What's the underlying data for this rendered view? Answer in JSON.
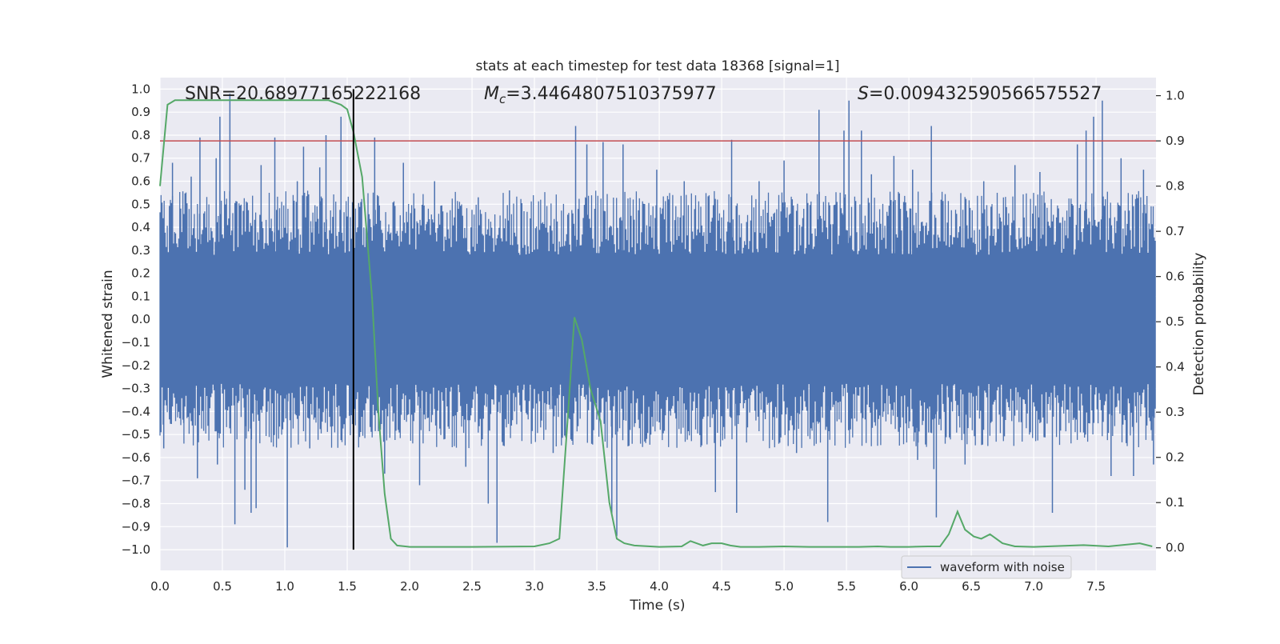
{
  "chart_data": {
    "type": "line",
    "title": "stats at each timestep for test data 18368 [signal=1]",
    "xlabel": "Time (s)",
    "ylabel_left": "Whitened strain",
    "ylabel_right": "Detection probability",
    "xlim": [
      0,
      7.98
    ],
    "ylim_left": [
      -1.09,
      1.05
    ],
    "ylim_right": [
      -0.05,
      1.04
    ],
    "x_ticks": [
      "0.0",
      "0.5",
      "1.0",
      "1.5",
      "2.0",
      "2.5",
      "3.0",
      "3.5",
      "4.0",
      "4.5",
      "5.0",
      "5.5",
      "6.0",
      "6.5",
      "7.0",
      "7.5"
    ],
    "y_ticks_left": [
      "1.0",
      "0.9",
      "0.8",
      "0.7",
      "0.6",
      "0.5",
      "0.4",
      "0.3",
      "0.2",
      "0.1",
      "0.0",
      "-0.1",
      "-0.2",
      "-0.3",
      "-0.4",
      "-0.5",
      "-0.6",
      "-0.7",
      "-0.8",
      "-0.9",
      "-1.0"
    ],
    "y_ticks_left_display": [
      "1.0",
      "0.9",
      "0.8",
      "0.7",
      "0.6",
      "0.5",
      "0.4",
      "0.3",
      "0.2",
      "0.1",
      "0.0",
      "−0.1",
      "−0.2",
      "−0.3",
      "−0.4",
      "−0.5",
      "−0.6",
      "−0.7",
      "−0.8",
      "−0.9",
      "−1.0"
    ],
    "y_ticks_right": [
      "0.0",
      "0.1",
      "0.2",
      "0.3",
      "0.4",
      "0.5",
      "0.6",
      "0.7",
      "0.8",
      "0.9",
      "1.0"
    ],
    "annotations": {
      "snr": "SNR=20.68977165222168",
      "mc_symbol": "M",
      "mc_sub": "c",
      "mc_value": "=3.4464807510375977",
      "s_symbol": "S",
      "s_value": "=0.009432590566575527"
    },
    "threshold_line": {
      "y_right": 0.9,
      "color": "#c44e52"
    },
    "merger_marker": {
      "x": 1.55,
      "y_left": [
        -1.0,
        1.0
      ],
      "color": "#000000"
    },
    "series": [
      {
        "name": "waveform with noise",
        "axis": "left",
        "color": "#4c72b0",
        "spikes": [
          {
            "x": 0.03,
            "v": -0.56
          },
          {
            "x": 0.1,
            "v": 0.68
          },
          {
            "x": 0.19,
            "v": -0.45
          },
          {
            "x": 0.25,
            "v": 0.62
          },
          {
            "x": 0.3,
            "v": -0.69
          },
          {
            "x": 0.32,
            "v": 0.79
          },
          {
            "x": 0.45,
            "v": 0.7
          },
          {
            "x": 0.46,
            "v": -0.63
          },
          {
            "x": 0.48,
            "v": 0.88
          },
          {
            "x": 0.56,
            "v": 0.98
          },
          {
            "x": 0.6,
            "v": -0.89
          },
          {
            "x": 0.68,
            "v": -0.74
          },
          {
            "x": 0.73,
            "v": -0.84
          },
          {
            "x": 0.77,
            "v": -0.82
          },
          {
            "x": 0.81,
            "v": 0.67
          },
          {
            "x": 0.92,
            "v": 0.79
          },
          {
            "x": 1.02,
            "v": -0.99
          },
          {
            "x": 1.1,
            "v": 0.6
          },
          {
            "x": 1.15,
            "v": 0.75
          },
          {
            "x": 1.2,
            "v": -0.56
          },
          {
            "x": 1.28,
            "v": 0.66
          },
          {
            "x": 1.33,
            "v": 0.8
          },
          {
            "x": 1.45,
            "v": 0.88
          },
          {
            "x": 1.55,
            "v": -0.56
          },
          {
            "x": 1.72,
            "v": 0.79
          },
          {
            "x": 1.8,
            "v": -0.67
          },
          {
            "x": 1.95,
            "v": 0.68
          },
          {
            "x": 2.08,
            "v": -0.72
          },
          {
            "x": 2.2,
            "v": 0.6
          },
          {
            "x": 2.45,
            "v": -0.64
          },
          {
            "x": 2.55,
            "v": 0.53
          },
          {
            "x": 2.63,
            "v": -0.8
          },
          {
            "x": 2.7,
            "v": -0.97
          },
          {
            "x": 2.8,
            "v": 0.56
          },
          {
            "x": 3.15,
            "v": -0.58
          },
          {
            "x": 3.33,
            "v": 0.84
          },
          {
            "x": 3.42,
            "v": 0.76
          },
          {
            "x": 3.55,
            "v": 0.77
          },
          {
            "x": 3.62,
            "v": -0.85
          },
          {
            "x": 3.66,
            "v": -0.94
          },
          {
            "x": 3.71,
            "v": 0.76
          },
          {
            "x": 3.98,
            "v": 0.65
          },
          {
            "x": 4.2,
            "v": 0.6
          },
          {
            "x": 4.45,
            "v": -0.75
          },
          {
            "x": 4.58,
            "v": 0.78
          },
          {
            "x": 4.62,
            "v": -0.84
          },
          {
            "x": 4.8,
            "v": 0.6
          },
          {
            "x": 5.0,
            "v": 0.69
          },
          {
            "x": 5.1,
            "v": -0.58
          },
          {
            "x": 5.28,
            "v": 0.91
          },
          {
            "x": 5.35,
            "v": -0.88
          },
          {
            "x": 5.48,
            "v": 0.82
          },
          {
            "x": 5.52,
            "v": 0.95
          },
          {
            "x": 5.62,
            "v": 0.82
          },
          {
            "x": 5.7,
            "v": 0.63
          },
          {
            "x": 5.88,
            "v": 0.71
          },
          {
            "x": 6.03,
            "v": 0.65
          },
          {
            "x": 6.07,
            "v": -0.61
          },
          {
            "x": 6.18,
            "v": 0.84
          },
          {
            "x": 6.2,
            "v": -0.65
          },
          {
            "x": 6.22,
            "v": -0.86
          },
          {
            "x": 6.45,
            "v": -0.63
          },
          {
            "x": 6.6,
            "v": 0.6
          },
          {
            "x": 6.85,
            "v": 0.67
          },
          {
            "x": 7.05,
            "v": 0.64
          },
          {
            "x": 7.15,
            "v": -0.84
          },
          {
            "x": 7.35,
            "v": 0.76
          },
          {
            "x": 7.42,
            "v": 0.82
          },
          {
            "x": 7.48,
            "v": 0.88
          },
          {
            "x": 7.55,
            "v": 0.95
          },
          {
            "x": 7.62,
            "v": -0.68
          },
          {
            "x": 7.7,
            "v": 0.7
          },
          {
            "x": 7.8,
            "v": -0.68
          },
          {
            "x": 7.88,
            "v": 0.65
          },
          {
            "x": 7.96,
            "v": -0.63
          }
        ]
      },
      {
        "name": "",
        "axis": "right",
        "color": "#55a868",
        "x": [
          0.0,
          0.06,
          0.12,
          0.3,
          0.6,
          0.9,
          1.2,
          1.35,
          1.45,
          1.5,
          1.55,
          1.62,
          1.7,
          1.75,
          1.8,
          1.85,
          1.9,
          2.0,
          2.5,
          3.0,
          3.12,
          3.2,
          3.27,
          3.32,
          3.38,
          3.45,
          3.53,
          3.6,
          3.66,
          3.72,
          3.8,
          4.0,
          4.18,
          4.25,
          4.35,
          4.42,
          4.5,
          4.57,
          4.65,
          4.8,
          5.0,
          5.2,
          5.4,
          5.6,
          5.75,
          5.85,
          6.0,
          6.15,
          6.25,
          6.32,
          6.39,
          6.45,
          6.52,
          6.58,
          6.65,
          6.75,
          6.85,
          7.0,
          7.2,
          7.4,
          7.6,
          7.85,
          7.95
        ],
        "y": [
          0.8,
          0.98,
          0.99,
          0.99,
          0.99,
          0.99,
          0.99,
          0.99,
          0.98,
          0.97,
          0.92,
          0.82,
          0.55,
          0.3,
          0.12,
          0.02,
          0.005,
          0.002,
          0.002,
          0.003,
          0.01,
          0.02,
          0.3,
          0.51,
          0.46,
          0.35,
          0.28,
          0.1,
          0.02,
          0.01,
          0.005,
          0.002,
          0.003,
          0.015,
          0.005,
          0.01,
          0.01,
          0.005,
          0.002,
          0.002,
          0.003,
          0.002,
          0.002,
          0.002,
          0.003,
          0.002,
          0.002,
          0.003,
          0.003,
          0.03,
          0.08,
          0.04,
          0.025,
          0.02,
          0.03,
          0.01,
          0.003,
          0.002,
          0.004,
          0.006,
          0.003,
          0.01,
          0.003
        ]
      }
    ],
    "legend": {
      "entries": [
        "waveform with noise"
      ],
      "placement": "lower-right"
    },
    "grid": true
  }
}
